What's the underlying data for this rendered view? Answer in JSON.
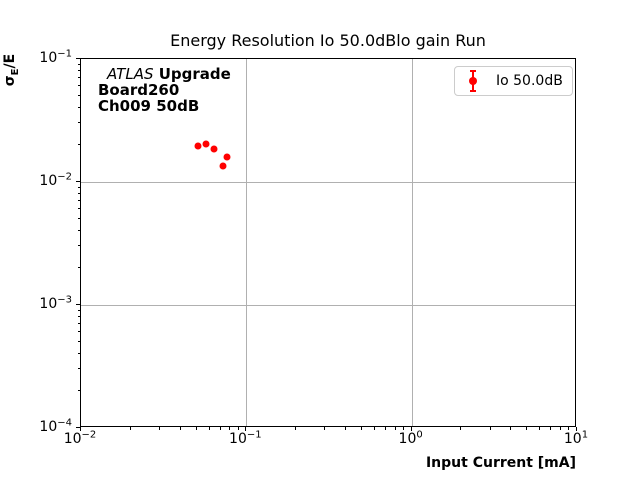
{
  "title": "Energy Resolution Io 50.0dBlo gain Run",
  "annotation": {
    "line1_italic": "ATLAS",
    "line1_bold": " Upgrade",
    "line2": "Board260",
    "line3": "Ch009 50dB"
  },
  "legend": {
    "label": "Io 50.0dB",
    "marker_color": "#ff0000",
    "border_color": "#cccccc"
  },
  "axes": {
    "xlabel": "Input Current [mA]",
    "ylabel_sigma": "σ",
    "ylabel_sub": "E",
    "ylabel_rest": "/E",
    "x_tick_exponents": [
      -2,
      -1,
      0,
      1
    ],
    "y_tick_exponents": [
      -1,
      -2,
      -3,
      -4
    ]
  },
  "colors": {
    "marker": "#ff0000",
    "grid": "#b0b0b0",
    "axis": "#000000",
    "background": "#ffffff"
  },
  "chart_data": {
    "type": "scatter",
    "title": "Energy Resolution Io 50.0dBlo gain Run",
    "xlabel": "Input Current [mA]",
    "ylabel": "σ_E/E",
    "xscale": "log",
    "yscale": "log",
    "xlim": [
      0.01,
      10
    ],
    "ylim": [
      0.0001,
      0.1
    ],
    "grid": true,
    "legend_position": "upper right",
    "annotations": [
      "ATLAS Upgrade",
      "Board260",
      "Ch009 50dB"
    ],
    "series": [
      {
        "name": "Io 50.0dB",
        "marker": "errorbar-dot",
        "color": "#ff0000",
        "x": [
          0.051,
          0.057,
          0.064,
          0.072,
          0.076
        ],
        "y": [
          0.0196,
          0.0204,
          0.0186,
          0.0135,
          0.016
        ]
      }
    ]
  }
}
